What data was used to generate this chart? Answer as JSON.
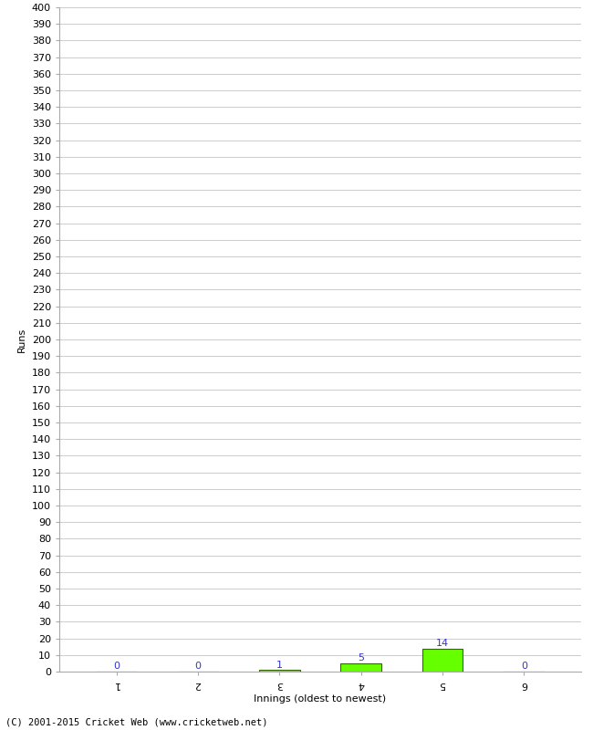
{
  "categories": [
    "1",
    "2",
    "3",
    "4",
    "5",
    "6"
  ],
  "values": [
    0,
    0,
    1,
    5,
    14,
    0
  ],
  "bar_color": "#66ff00",
  "bar_edge_color": "#336600",
  "xlabel": "Innings (oldest to newest)",
  "ylabel": "Runs",
  "ylim": [
    0,
    400
  ],
  "ytick_step": 10,
  "label_color": "#3333cc",
  "background_color": "#ffffff",
  "grid_color": "#cccccc",
  "footer": "(C) 2001-2015 Cricket Web (www.cricketweb.net)",
  "tick_fontsize": 8,
  "label_fontsize": 8,
  "bar_label_fontsize": 8
}
